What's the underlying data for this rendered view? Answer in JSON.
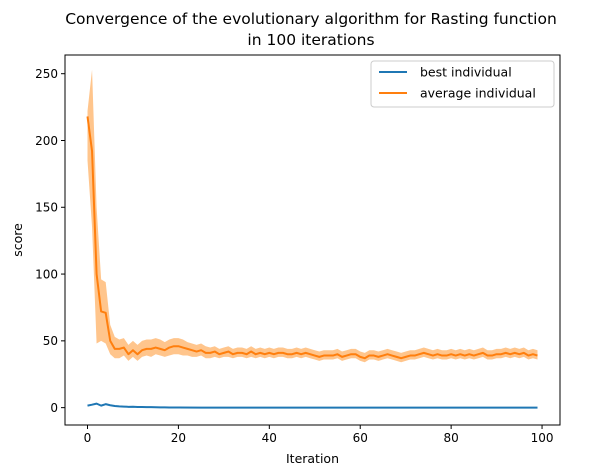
{
  "chart_data": {
    "type": "line",
    "title_lines": [
      "Convergence of the evolutionary algorithm for Rasting function",
      "in 100 iterations"
    ],
    "xlabel": "Iteration",
    "ylabel": "score",
    "xlim": [
      -4.95,
      103.95
    ],
    "ylim": [
      -13,
      264
    ],
    "xticks": [
      0,
      20,
      40,
      60,
      80,
      100
    ],
    "yticks": [
      0,
      50,
      100,
      150,
      200,
      250
    ],
    "grid": false,
    "legend_position": "top-right",
    "series": [
      {
        "name": "best individual",
        "color": "#1f77b4",
        "x": [
          0,
          1,
          2,
          3,
          4,
          5,
          6,
          7,
          8,
          9,
          10,
          11,
          12,
          13,
          14,
          15,
          16,
          17,
          18,
          19,
          20,
          25,
          30,
          40,
          50,
          60,
          70,
          80,
          90,
          99
        ],
        "y": [
          1.5,
          2.2,
          3.0,
          1.5,
          2.6,
          1.8,
          1.2,
          0.9,
          0.8,
          0.6,
          0.7,
          0.5,
          0.5,
          0.4,
          0.4,
          0.3,
          0.2,
          0.2,
          0.1,
          0.1,
          0.1,
          0.05,
          0.05,
          0.05,
          0.05,
          0.05,
          0.05,
          0.05,
          0.05,
          0.05
        ]
      },
      {
        "name": "average individual",
        "color": "#ff7f0e",
        "band_color": "#ffbb78",
        "x": [
          0,
          1,
          2,
          3,
          4,
          5,
          6,
          7,
          8,
          9,
          10,
          11,
          12,
          13,
          14,
          15,
          16,
          17,
          18,
          19,
          20,
          21,
          22,
          23,
          24,
          25,
          26,
          27,
          28,
          29,
          30,
          31,
          32,
          33,
          34,
          35,
          36,
          37,
          38,
          39,
          40,
          41,
          42,
          43,
          44,
          45,
          46,
          47,
          48,
          49,
          50,
          51,
          52,
          53,
          54,
          55,
          56,
          57,
          58,
          59,
          60,
          61,
          62,
          63,
          64,
          65,
          66,
          67,
          68,
          69,
          70,
          71,
          72,
          73,
          74,
          75,
          76,
          77,
          78,
          79,
          80,
          81,
          82,
          83,
          84,
          85,
          86,
          87,
          88,
          89,
          90,
          91,
          92,
          93,
          94,
          95,
          96,
          97,
          98,
          99
        ],
        "y": [
          218,
          192,
          100,
          72,
          71,
          50,
          44,
          44,
          45,
          40,
          43,
          40,
          43,
          44,
          44,
          45,
          44,
          43,
          45,
          46,
          46,
          45,
          44,
          43,
          42,
          43,
          41,
          41,
          42,
          40,
          41,
          42,
          40,
          41,
          41,
          40,
          42,
          40,
          41,
          40,
          41,
          40,
          41,
          41,
          40,
          40,
          41,
          40,
          41,
          40,
          39,
          38,
          39,
          39,
          39,
          40,
          38,
          39,
          40,
          40,
          38,
          37,
          39,
          39,
          38,
          39,
          40,
          39,
          38,
          37,
          38,
          39,
          39,
          40,
          41,
          40,
          39,
          40,
          39,
          39,
          40,
          39,
          40,
          39,
          40,
          39,
          40,
          41,
          39,
          39,
          40,
          40,
          41,
          40,
          41,
          40,
          41,
          39,
          40,
          39
        ],
        "lower": [
          185,
          135,
          48,
          50,
          48,
          40,
          37,
          37,
          39,
          35,
          38,
          35,
          38,
          39,
          38,
          40,
          39,
          38,
          39,
          40,
          40,
          39,
          39,
          38,
          38,
          39,
          37,
          37,
          38,
          37,
          38,
          38,
          37,
          38,
          38,
          37,
          38,
          37,
          38,
          37,
          38,
          37,
          38,
          38,
          37,
          37,
          38,
          37,
          38,
          37,
          36,
          35,
          36,
          36,
          36,
          37,
          35,
          36,
          37,
          37,
          35,
          34,
          36,
          36,
          35,
          36,
          37,
          36,
          35,
          34,
          35,
          36,
          36,
          37,
          38,
          37,
          36,
          37,
          36,
          36,
          37,
          36,
          37,
          36,
          37,
          36,
          37,
          38,
          36,
          36,
          37,
          37,
          38,
          37,
          38,
          37,
          38,
          36,
          37,
          36
        ],
        "upper": [
          222,
          253,
          150,
          96,
          94,
          62,
          53,
          51,
          52,
          47,
          50,
          47,
          50,
          51,
          51,
          52,
          51,
          49,
          51,
          52,
          52,
          51,
          49,
          48,
          47,
          48,
          46,
          45,
          46,
          44,
          45,
          46,
          44,
          45,
          45,
          44,
          46,
          44,
          45,
          44,
          45,
          44,
          45,
          45,
          44,
          44,
          45,
          44,
          45,
          44,
          43,
          42,
          43,
          43,
          43,
          44,
          42,
          43,
          44,
          44,
          42,
          41,
          43,
          43,
          42,
          43,
          44,
          43,
          42,
          41,
          42,
          43,
          43,
          44,
          45,
          44,
          43,
          44,
          43,
          43,
          44,
          43,
          44,
          43,
          44,
          43,
          44,
          45,
          43,
          43,
          44,
          44,
          45,
          44,
          45,
          44,
          45,
          43,
          44,
          43
        ]
      }
    ]
  }
}
